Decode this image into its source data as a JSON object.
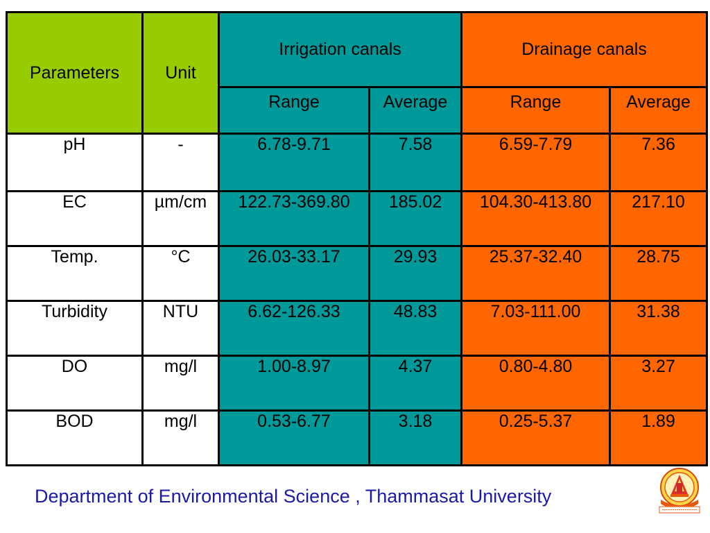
{
  "table": {
    "header": {
      "parameters": "Parameters",
      "unit": "Unit",
      "irrigation": "Irrigation canals",
      "drainage": "Drainage canals",
      "range": "Range",
      "average": "Average"
    },
    "rows": [
      {
        "param": "pH",
        "unit": "-",
        "irr_range": "6.78-9.71",
        "irr_avg": "7.58",
        "drn_range": "6.59-7.79",
        "drn_avg": "7.36"
      },
      {
        "param": "EC",
        "unit": "µm/cm",
        "irr_range": "122.73-369.80",
        "irr_avg": "185.02",
        "drn_range": "104.30-413.80",
        "drn_avg": "217.10"
      },
      {
        "param": "Temp.",
        "unit": "°C",
        "irr_range": "26.03-33.17",
        "irr_avg": "29.93",
        "drn_range": "25.37-32.40",
        "drn_avg": "28.75"
      },
      {
        "param": "Turbidity",
        "unit": "NTU",
        "irr_range": "6.62-126.33",
        "irr_avg": "48.83",
        "drn_range": "7.03-111.00",
        "drn_avg": "31.38"
      },
      {
        "param": "DO",
        "unit": "mg/l",
        "irr_range": "1.00-8.97",
        "irr_avg": "4.37",
        "drn_range": "0.80-4.80",
        "drn_avg": "3.27"
      },
      {
        "param": "BOD",
        "unit": "mg/l",
        "irr_range": "0.53-6.77",
        "irr_avg": "3.18",
        "drn_range": "0.25-5.37",
        "drn_avg": "1.89"
      }
    ]
  },
  "footer": {
    "text": "Department of Environmental Science , Thammasat University",
    "logo_icon": "thammasat-university-seal-icon"
  },
  "colors": {
    "parameters_header": "#99cc00",
    "irrigation": "#009999",
    "drainage": "#ff6600",
    "footer_text": "#1a1aa6"
  }
}
